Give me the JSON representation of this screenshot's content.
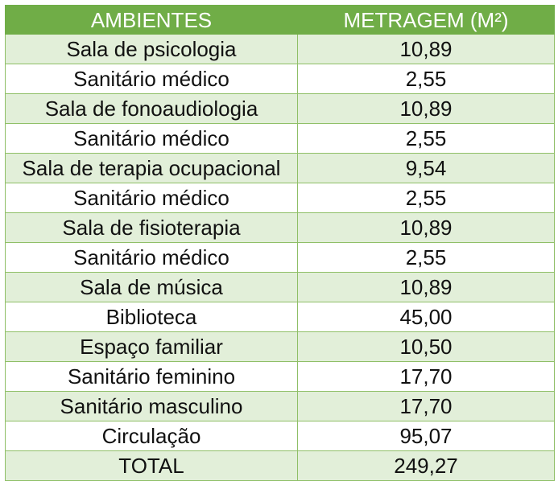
{
  "table": {
    "headers": [
      "AMBIENTES",
      "METRAGEM (M²)"
    ],
    "rows": [
      {
        "ambiente": "Sala de psicologia",
        "metragem": "10,89"
      },
      {
        "ambiente": "Sanitário médico",
        "metragem": "2,55"
      },
      {
        "ambiente": "Sala de fonoaudiologia",
        "metragem": "10,89"
      },
      {
        "ambiente": "Sanitário médico",
        "metragem": "2,55"
      },
      {
        "ambiente": "Sala de terapia ocupacional",
        "metragem": "9,54"
      },
      {
        "ambiente": "Sanitário médico",
        "metragem": "2,55"
      },
      {
        "ambiente": "Sala de fisioterapia",
        "metragem": "10,89"
      },
      {
        "ambiente": "Sanitário médico",
        "metragem": "2,55"
      },
      {
        "ambiente": "Sala de música",
        "metragem": "10,89"
      },
      {
        "ambiente": "Biblioteca",
        "metragem": "45,00"
      },
      {
        "ambiente": "Espaço familiar",
        "metragem": "10,50"
      },
      {
        "ambiente": "Sanitário feminino",
        "metragem": "17,70"
      },
      {
        "ambiente": "Sanitário masculino",
        "metragem": "17,70"
      },
      {
        "ambiente": "Circulação",
        "metragem": "95,07"
      }
    ],
    "total": {
      "label": "TOTAL",
      "value": "249,27"
    }
  },
  "colors": {
    "header_bg": "#70ad47",
    "header_text": "#ffffff",
    "band_bg": "#e2efd9",
    "plain_bg": "#ffffff",
    "border": "#8fbf67"
  }
}
